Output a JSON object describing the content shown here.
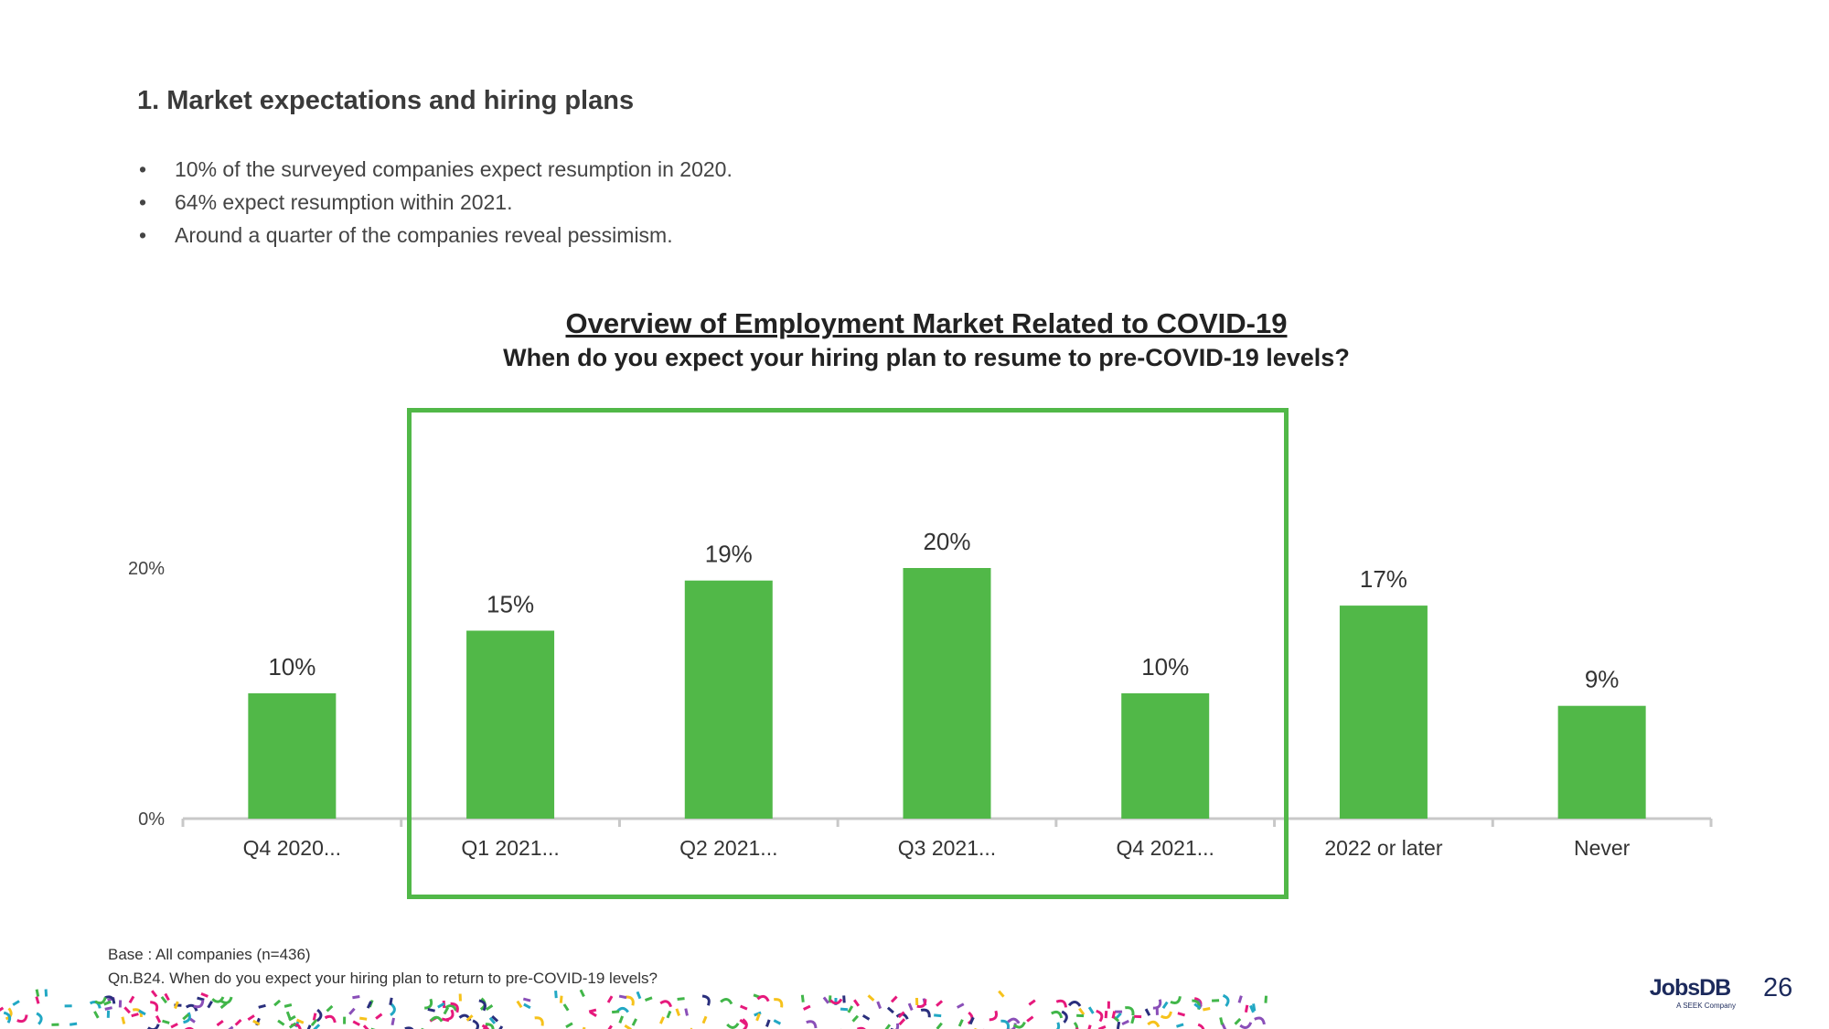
{
  "section_title": "1. Market expectations and hiring plans",
  "bullets": [
    "10% of the surveyed companies expect resumption in 2020.",
    "64% expect resumption within 2021.",
    "Around a quarter of the companies reveal pessimism."
  ],
  "bullet_glyph": "•",
  "chart_data": {
    "type": "bar",
    "title": "Overview of Employment Market Related to COVID-19",
    "subtitle": "When do you expect your hiring plan to resume to pre-COVID-19 levels?",
    "categories": [
      "Q4 2020...",
      "Q1 2021...",
      "Q2 2021...",
      "Q3 2021...",
      "Q4 2021...",
      "2022 or later",
      "Never"
    ],
    "values": [
      10,
      15,
      19,
      20,
      10,
      17,
      9
    ],
    "data_labels": [
      "10%",
      "15%",
      "19%",
      "20%",
      "10%",
      "17%",
      "9%"
    ],
    "yticks": [
      0,
      20
    ],
    "ytick_labels": [
      "0%",
      "20%"
    ],
    "ylim": [
      0,
      20
    ],
    "grid": false,
    "bar_color": "#51b848",
    "highlight": {
      "from_category": "Q1 2021...",
      "to_category": "Q4 2021...",
      "color": "#51b848"
    }
  },
  "footnotes": {
    "base": "Base : All companies  (n=436)",
    "question": "Qn.B24. When do you expect your hiring plan to return to pre-COVID-19 levels?"
  },
  "logo": {
    "name": "JobsDB",
    "tagline": "A SEEK Company"
  },
  "page_number": "26"
}
